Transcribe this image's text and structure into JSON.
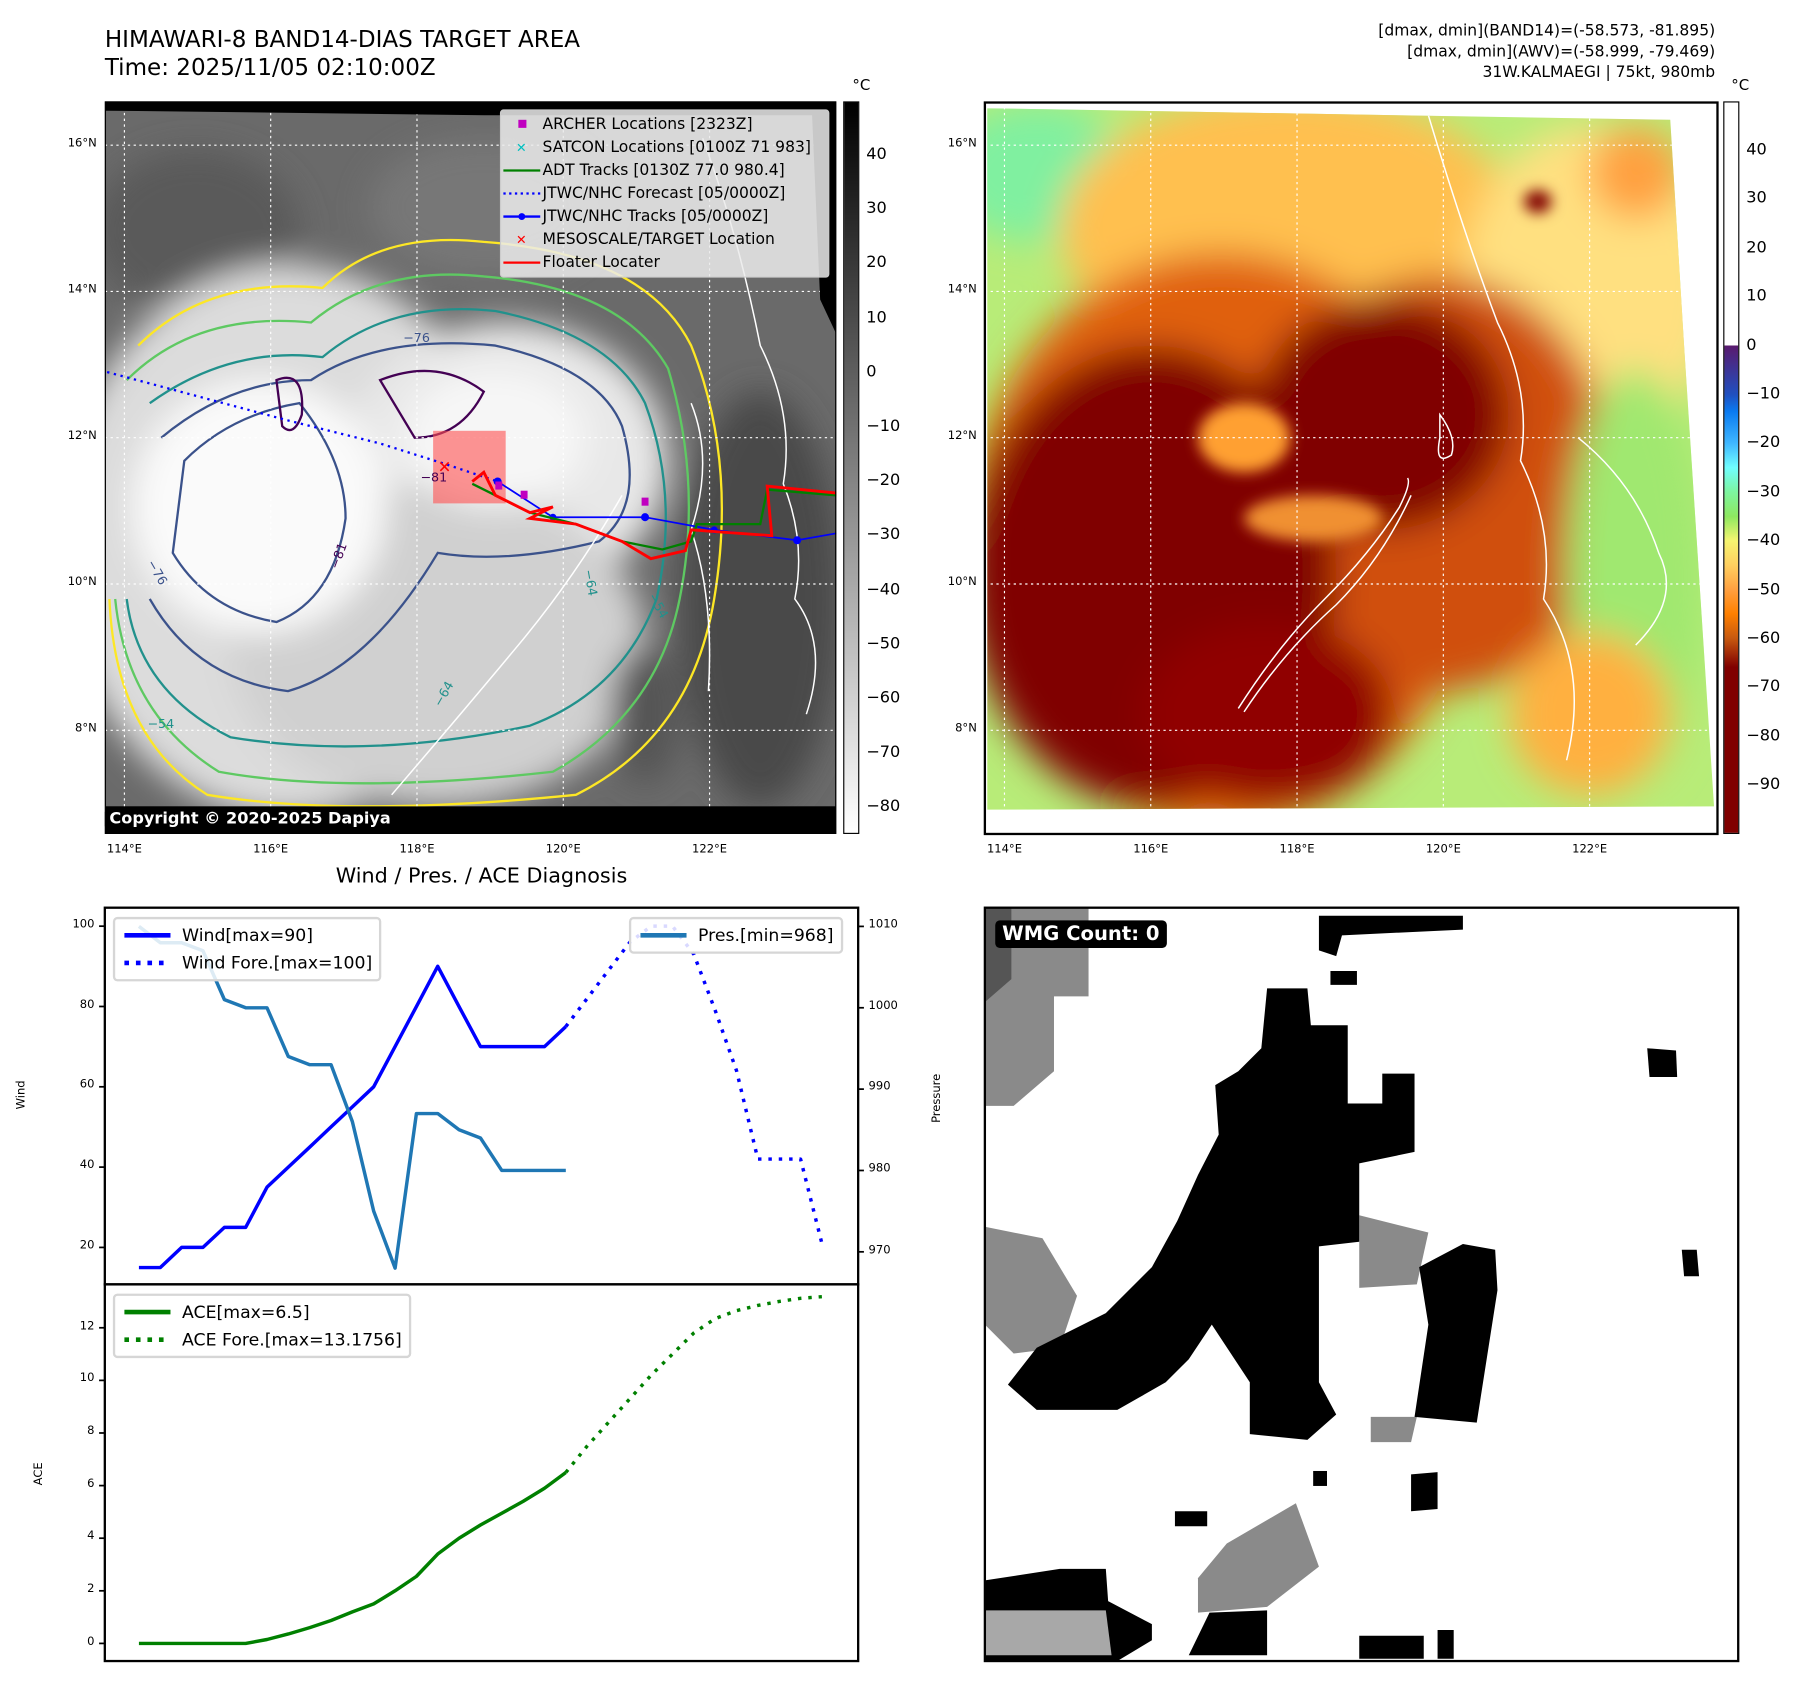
{
  "header": {
    "title": "HIMAWARI-8 BAND14-DIAS TARGET AREA",
    "time": "Time: 2025/11/05 02:10:00Z",
    "info": [
      "[dmax, dmin](BAND14)=(-58.573, -81.895)",
      "[dmax, dmin](AWV)=(-58.999, -79.469)",
      "31W.KALMAEGI | 75kt, 980mb"
    ]
  },
  "maps": {
    "lat_labels": [
      "16°N",
      "14°N",
      "12°N",
      "10°N",
      "8°N"
    ],
    "lon_labels": [
      "114°E",
      "116°E",
      "118°E",
      "120°E",
      "122°E"
    ],
    "unit": "°C",
    "left_colorbar_ticks": [
      "40",
      "30",
      "20",
      "10",
      "0",
      "−10",
      "−20",
      "−30",
      "−40",
      "−50",
      "−60",
      "−70",
      "−80"
    ],
    "right_colorbar_ticks": [
      "40",
      "30",
      "20",
      "10",
      "0",
      "−10",
      "−20",
      "−30",
      "−40",
      "−50",
      "−60",
      "−70",
      "−80",
      "−90"
    ],
    "contour_labels": [
      "−76",
      "−81",
      "−76",
      "−81",
      "−64",
      "−64",
      "−54",
      "−54"
    ],
    "copyright": "Copyright © 2020-2025 Dapiya",
    "legend": [
      {
        "label": "ARCHER Locations [2323Z]",
        "icon": "square-marker",
        "color": "#c000c0"
      },
      {
        "label": "SATCON Locations [0100Z 71 983]",
        "icon": "x-marker",
        "color": "#00c0c0"
      },
      {
        "label": "ADT Tracks [0130Z 77.0 980.4]",
        "icon": "solid-line",
        "color": "#008000"
      },
      {
        "label": "JTWC/NHC Forecast [05/0000Z]",
        "icon": "dotted-line",
        "color": "#0000ff"
      },
      {
        "label": "JTWC/NHC Tracks [05/0000Z]",
        "icon": "line-dot",
        "color": "#0000ff"
      },
      {
        "label": "MESOSCALE/TARGET Location",
        "icon": "x-marker",
        "color": "#ff0000"
      },
      {
        "label": "Floater Locater",
        "icon": "solid-line",
        "color": "#ff0000"
      }
    ]
  },
  "wmg": {
    "label": "WMG Count: 0"
  },
  "chart_data": [
    {
      "type": "line",
      "title": "Wind / Pres. / ACE Diagnosis",
      "ylabel": "Wind",
      "ylabel_right": "Pressure",
      "xlim": [
        -1.6,
        33.7
      ],
      "ylim": [
        10.8,
        104.6
      ],
      "ylim_right": [
        966,
        1012.3
      ],
      "yticks": [
        100,
        80,
        60,
        40,
        20
      ],
      "yticks_right": [
        1010,
        1000,
        990,
        980,
        970
      ],
      "series": [
        {
          "name": "Wind[max=90]",
          "axis": "left",
          "style": "solid",
          "color": "#0000ff",
          "x": [
            0,
            1,
            2,
            3,
            4,
            5,
            6,
            7,
            8,
            9,
            10,
            11,
            12,
            13,
            14,
            15,
            16,
            17,
            18,
            19,
            20
          ],
          "values": [
            15,
            15,
            20,
            20,
            25,
            25,
            35,
            40,
            45,
            50,
            55,
            60,
            70,
            80,
            90,
            80,
            70,
            70,
            70,
            70,
            75
          ]
        },
        {
          "name": "Wind Fore.[max=100]",
          "axis": "left",
          "style": "dotted",
          "color": "#0000ff",
          "x": [
            20,
            21,
            22,
            23,
            24,
            25,
            26,
            27,
            28,
            29,
            30,
            31,
            32
          ],
          "values": [
            75,
            82,
            89,
            96,
            100,
            100,
            93,
            79,
            64,
            42,
            42,
            42,
            21
          ]
        },
        {
          "name": "Pres.[min=968]",
          "axis": "right",
          "style": "solid",
          "color": "#1f77b4",
          "x": [
            0,
            1,
            2,
            3,
            4,
            5,
            6,
            7,
            8,
            9,
            10,
            11,
            12,
            13,
            14,
            15,
            16,
            17,
            18,
            19,
            20
          ],
          "values": [
            1010,
            1008,
            1008,
            1007,
            1001,
            1000,
            1000,
            994,
            993,
            993,
            986,
            975,
            968,
            987,
            987,
            985,
            984,
            980,
            980,
            980,
            980
          ]
        }
      ],
      "legend": [
        "Wind[max=90]",
        "Wind Fore.[max=100]",
        "Pres.[min=968]"
      ]
    },
    {
      "type": "line",
      "ylabel": "ACE",
      "xlim": [
        -1.6,
        33.7
      ],
      "ylim": [
        -0.67,
        13.65
      ],
      "yticks": [
        12,
        10,
        8,
        6,
        4,
        2,
        0
      ],
      "series": [
        {
          "name": "ACE[max=6.5]",
          "style": "solid",
          "color": "#008000",
          "x": [
            0,
            1,
            2,
            3,
            4,
            5,
            6,
            7,
            8,
            9,
            10,
            11,
            12,
            13,
            14,
            15,
            16,
            17,
            18,
            19,
            20
          ],
          "values": [
            0,
            0,
            0,
            0,
            0,
            0,
            0.15,
            0.36,
            0.6,
            0.87,
            1.2,
            1.5,
            2.0,
            2.55,
            3.4,
            4.0,
            4.5,
            4.95,
            5.4,
            5.9,
            6.5
          ]
        },
        {
          "name": "ACE Fore.[max=13.1756]",
          "style": "dotted",
          "color": "#008000",
          "x": [
            20,
            21,
            22,
            23,
            24,
            25,
            26,
            27,
            28,
            29,
            30,
            31,
            32
          ],
          "values": [
            6.5,
            7.5,
            8.4,
            9.3,
            10.2,
            11.0,
            11.8,
            12.35,
            12.65,
            12.85,
            13.0,
            13.12,
            13.18
          ]
        }
      ],
      "legend": [
        "ACE[max=6.5]",
        "ACE Fore.[max=13.1756]"
      ]
    }
  ]
}
